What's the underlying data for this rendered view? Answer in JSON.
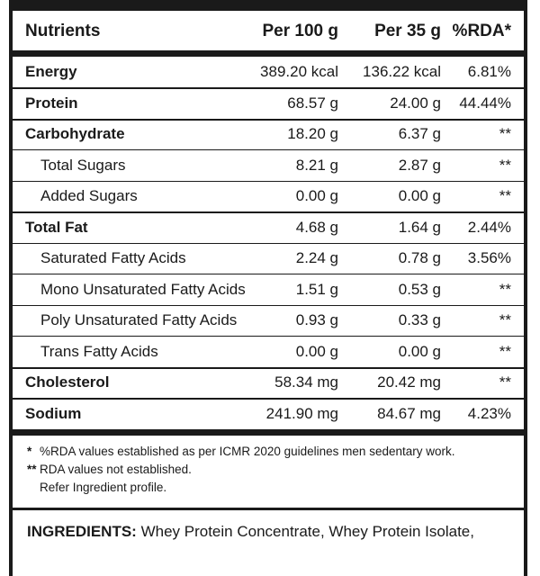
{
  "table": {
    "headers": {
      "name": "Nutrients",
      "per100": "Per 100 g",
      "per35": "Per 35 g",
      "rda": "%RDA*"
    },
    "rows": [
      {
        "name": "Energy",
        "per100": "389.20 kcal",
        "per35": "136.22 kcal",
        "rda": "6.81%",
        "bold": true,
        "sub": false
      },
      {
        "name": "Protein",
        "per100": "68.57 g",
        "per35": "24.00 g",
        "rda": "44.44%",
        "bold": true,
        "sub": false
      },
      {
        "name": "Carbohydrate",
        "per100": "18.20 g",
        "per35": "6.37 g",
        "rda": "**",
        "bold": true,
        "sub": false
      },
      {
        "name": "Total Sugars",
        "per100": "8.21 g",
        "per35": "2.87 g",
        "rda": "**",
        "bold": false,
        "sub": true
      },
      {
        "name": "Added Sugars",
        "per100": "0.00 g",
        "per35": "0.00 g",
        "rda": "**",
        "bold": false,
        "sub": true
      },
      {
        "name": "Total Fat",
        "per100": "4.68 g",
        "per35": "1.64 g",
        "rda": "2.44%",
        "bold": true,
        "sub": false
      },
      {
        "name": "Saturated Fatty Acids",
        "per100": "2.24 g",
        "per35": "0.78 g",
        "rda": "3.56%",
        "bold": false,
        "sub": true
      },
      {
        "name": "Mono Unsaturated Fatty Acids",
        "per100": "1.51 g",
        "per35": "0.53 g",
        "rda": "**",
        "bold": false,
        "sub": true
      },
      {
        "name": "Poly Unsaturated Fatty Acids",
        "per100": "0.93 g",
        "per35": "0.33 g",
        "rda": "**",
        "bold": false,
        "sub": true
      },
      {
        "name": "Trans Fatty Acids",
        "per100": "0.00 g",
        "per35": "0.00 g",
        "rda": "**",
        "bold": false,
        "sub": true
      },
      {
        "name": "Cholesterol",
        "per100": "58.34 mg",
        "per35": "20.42 mg",
        "rda": "**",
        "bold": true,
        "sub": false
      },
      {
        "name": "Sodium",
        "per100": "241.90 mg",
        "per35": "84.67 mg",
        "rda": "4.23%",
        "bold": true,
        "sub": false
      }
    ]
  },
  "footnotes": {
    "note1_mark": "*",
    "note1_text": "%RDA values established as per ICMR 2020 guidelines men sedentary work.",
    "note2_mark": "**",
    "note2_text": "RDA values not established.",
    "note3_text": "Refer Ingredient profile."
  },
  "ingredients": {
    "title": "INGREDIENTS:",
    "text": "Whey Protein Concentrate, Whey Protein Isolate,"
  },
  "colors": {
    "ink": "#1a1a1a",
    "background": "#ffffff"
  }
}
